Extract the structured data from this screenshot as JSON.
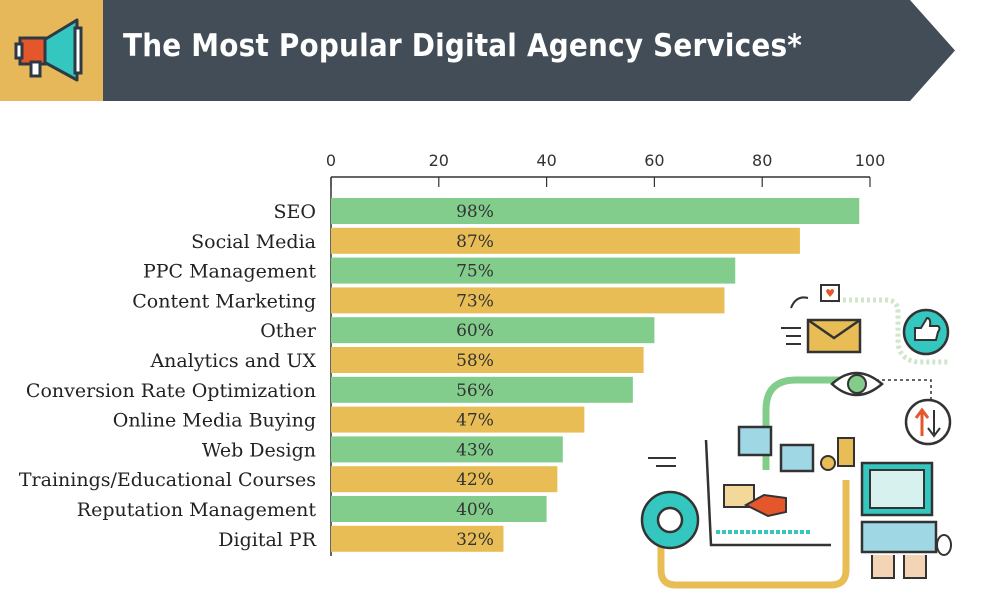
{
  "header": {
    "title": "The Most Popular Digital Agency Services*",
    "icon": "megaphone-icon",
    "icon_bg": "#e6b85a",
    "bar_color": "#434d58"
  },
  "colors": {
    "green": "#82cc8c",
    "yellow": "#e8bd55",
    "axis": "#333333"
  },
  "chart_data": {
    "type": "bar",
    "orientation": "horizontal",
    "title": "The Most Popular Digital Agency Services*",
    "xlim": [
      0,
      100
    ],
    "xticks": [
      0,
      20,
      40,
      60,
      80,
      100
    ],
    "xlabel": "",
    "ylabel": "",
    "grid": false,
    "categories": [
      "SEO",
      "Social Media",
      "PPC Management",
      "Content Marketing",
      "Other",
      "Analytics and UX",
      "Conversion Rate Optimization",
      "Online Media Buying",
      "Web Design",
      "Trainings/Educational Courses",
      "Reputation Management",
      "Digital PR"
    ],
    "values": [
      98,
      87,
      75,
      73,
      60,
      58,
      56,
      47,
      43,
      42,
      40,
      32
    ],
    "value_labels": [
      "98%",
      "87%",
      "75%",
      "73%",
      "60%",
      "58%",
      "56%",
      "47%",
      "43%",
      "42%",
      "40%",
      "32%"
    ]
  }
}
